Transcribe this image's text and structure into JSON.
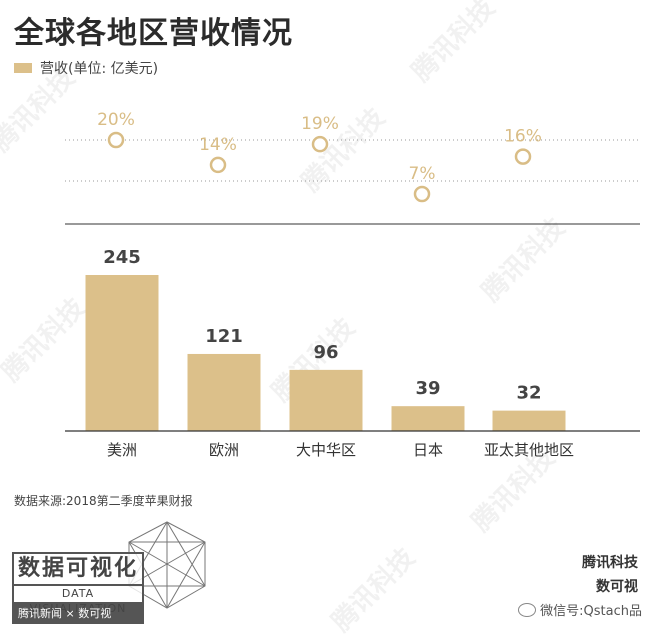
{
  "title": "全球各地区营收情况",
  "legend": {
    "label": "营收(单位: 亿美元)",
    "color": "#dcc08a"
  },
  "source": "数据来源:2018第二季度苹果财报",
  "chart_data": {
    "type": "bar",
    "categories": [
      "美洲",
      "欧洲",
      "大中华区",
      "日本",
      "亚太其他地区"
    ],
    "series": [
      {
        "name": "营收(单位: 亿美元)",
        "values": [
          245,
          121,
          96,
          39,
          32
        ]
      }
    ],
    "percent_points": [
      20,
      14,
      19,
      7,
      16
    ],
    "percent_labels": [
      "20%",
      "14%",
      "19%",
      "7%",
      "16%"
    ],
    "bar_color": "#dcc08a",
    "point_color": "#d9bd86"
  },
  "logo": {
    "title": "数据可视化",
    "subtitle": "DATA VISUALIZATION",
    "credit": "腾讯新闻 × 数可视"
  },
  "brand": {
    "line1": "腾讯科技",
    "line2": "数可视"
  },
  "wechat": {
    "text": "微信号:Qstach品"
  },
  "watermark": "腾讯科技"
}
